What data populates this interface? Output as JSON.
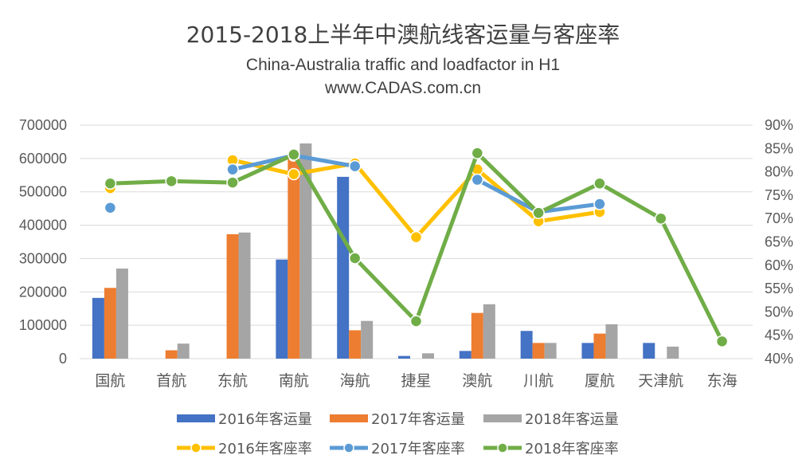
{
  "title": "2015-2018上半年中澳航线客运量与客座率",
  "subtitle": "China-Australia traffic and loadfactor in H1",
  "source": "www.CADAS.com.cn",
  "colors": {
    "s2016": "#4472C4",
    "s2017": "#ED7D31",
    "s2018": "#A5A5A5",
    "lf2016": "#FFC000",
    "lf2017": "#5B9BD5",
    "lf2018": "#70AD47",
    "grid": "#D9D9D9"
  },
  "chart_data": {
    "type": "bar",
    "categories": [
      "国航",
      "首航",
      "东航",
      "南航",
      "海航",
      "捷星",
      "澳航",
      "川航",
      "厦航",
      "天津航",
      "东海"
    ],
    "left_axis": {
      "ylim": [
        0,
        700000
      ],
      "ticks": [
        "0",
        "100000",
        "200000",
        "300000",
        "400000",
        "500000",
        "600000",
        "700000"
      ]
    },
    "right_axis": {
      "ylim": [
        40,
        90
      ],
      "ticks": [
        "40%",
        "45%",
        "50%",
        "55%",
        "60%",
        "65%",
        "70%",
        "75%",
        "80%",
        "85%",
        "90%"
      ]
    },
    "series": [
      {
        "name": "2016年客运量",
        "type": "bar",
        "axis": "left",
        "values": [
          182000,
          null,
          null,
          297000,
          545000,
          8000,
          23000,
          83000,
          47000,
          47000,
          null
        ]
      },
      {
        "name": "2017年客运量",
        "type": "bar",
        "axis": "left",
        "values": [
          212000,
          25000,
          373000,
          600000,
          85000,
          null,
          137000,
          47000,
          75000,
          null,
          null
        ]
      },
      {
        "name": "2018年客运量",
        "type": "bar",
        "axis": "left",
        "values": [
          270000,
          45000,
          378000,
          645000,
          113000,
          16000,
          163000,
          47000,
          103000,
          36000,
          null
        ]
      },
      {
        "name": "2016年客座率",
        "type": "line",
        "axis": "right",
        "values": [
          76.5,
          null,
          82.5,
          79.5,
          81.8,
          66.0,
          80.5,
          69.4,
          71.4,
          null,
          null
        ]
      },
      {
        "name": "2017年客座率",
        "type": "line",
        "axis": "right",
        "values": [
          72.3,
          null,
          80.5,
          83.5,
          81.2,
          null,
          78.3,
          71.4,
          73.1,
          null,
          null
        ]
      },
      {
        "name": "2018年客座率",
        "type": "line",
        "axis": "right",
        "values": [
          77.5,
          78.0,
          77.7,
          83.7,
          61.5,
          48.0,
          84.0,
          71.2,
          77.5,
          70.0,
          43.7
        ]
      }
    ],
    "grid": true,
    "legend_position": "bottom"
  }
}
